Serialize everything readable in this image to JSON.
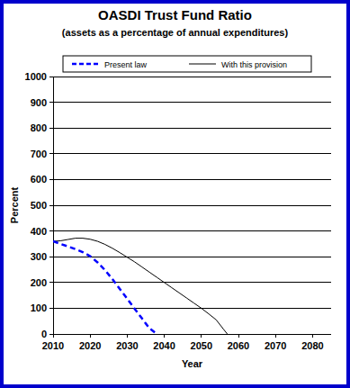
{
  "chart_data": {
    "type": "line",
    "title": "OASDI Trust Fund Ratio",
    "subtitle": "(assets as a percentage of annual expenditures)",
    "x_label": "Year",
    "y_label": "Percent",
    "x": [
      2010,
      2012,
      2014,
      2016,
      2018,
      2020,
      2022,
      2024,
      2026,
      2028,
      2030,
      2032,
      2034,
      2036,
      2038,
      2040,
      2042,
      2044,
      2046,
      2048,
      2050,
      2052,
      2054,
      2056,
      2057
    ],
    "series": [
      {
        "name": "Present law",
        "color": "#0000ff",
        "line_style": "dashed",
        "marker": "none",
        "values": [
          360,
          350,
          340,
          330,
          318,
          302,
          278,
          248,
          213,
          175,
          137,
          98,
          60,
          22,
          0,
          null,
          null,
          null,
          null,
          null,
          null,
          null,
          null,
          null,
          null
        ]
      },
      {
        "name": "With this provision",
        "color": "#000000",
        "line_style": "solid",
        "marker": "none",
        "values": [
          360,
          362,
          367,
          372,
          372,
          368,
          360,
          348,
          333,
          316,
          298,
          280,
          260,
          240,
          220,
          200,
          180,
          160,
          140,
          120,
          100,
          78,
          55,
          18,
          0
        ]
      }
    ],
    "xlim": [
      2010,
      2085
    ],
    "xticks": [
      2010,
      2020,
      2030,
      2040,
      2050,
      2060,
      2070,
      2080
    ],
    "ylim": [
      0,
      1000
    ],
    "yticks": [
      0,
      100,
      200,
      300,
      400,
      500,
      600,
      700,
      800,
      900,
      1000
    ],
    "grid": true,
    "legend": "top"
  }
}
